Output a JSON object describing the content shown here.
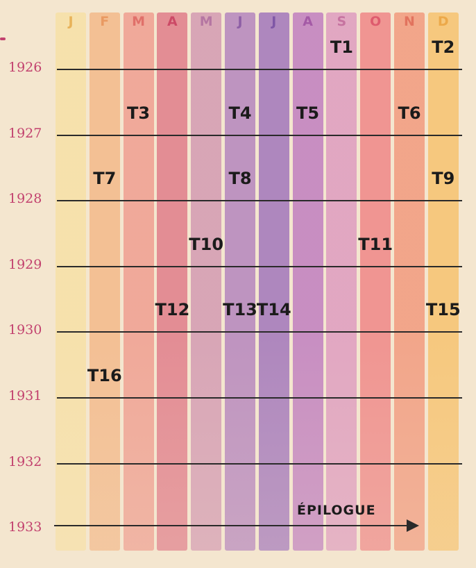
{
  "months": [
    {
      "label": "J",
      "color": "#f7e0a6",
      "text": "#e8b35a"
    },
    {
      "label": "F",
      "color": "#f3b98a",
      "text": "#e99a62"
    },
    {
      "label": "M",
      "color": "#ef9e90",
      "text": "#e0706a"
    },
    {
      "label": "A",
      "color": "#e07d8a",
      "text": "#cc4a66"
    },
    {
      "label": "M",
      "color": "#d39ab2",
      "text": "#b576a2"
    },
    {
      "label": "J",
      "color": "#b585bd",
      "text": "#8e5fa6"
    },
    {
      "label": "J",
      "color": "#a276bb",
      "text": "#7f57a6"
    },
    {
      "label": "A",
      "color": "#c07fbf",
      "text": "#a45aa6"
    },
    {
      "label": "S",
      "color": "#de9cbf",
      "text": "#c673a0"
    },
    {
      "label": "O",
      "color": "#ef8787",
      "text": "#de5b6e"
    },
    {
      "label": "N",
      "color": "#f19a7e",
      "text": "#e2735e"
    },
    {
      "label": "D",
      "color": "#f6c370",
      "text": "#eca94a"
    }
  ],
  "years": [
    "1926",
    "1927",
    "1928",
    "1929",
    "1930",
    "1931",
    "1932",
    "1933"
  ],
  "tomes": [
    {
      "label": "T1",
      "year": 1926,
      "month": 9
    },
    {
      "label": "T2",
      "year": 1926,
      "month": 12
    },
    {
      "label": "T3",
      "year": 1927,
      "month": 3
    },
    {
      "label": "T4",
      "year": 1927,
      "month": 6
    },
    {
      "label": "T5",
      "year": 1927,
      "month": 8
    },
    {
      "label": "T6",
      "year": 1927,
      "month": 11
    },
    {
      "label": "T7",
      "year": 1928,
      "month": 2
    },
    {
      "label": "T8",
      "year": 1928,
      "month": 6
    },
    {
      "label": "T9",
      "year": 1928,
      "month": 12
    },
    {
      "label": "T10",
      "year": 1929,
      "month": 5
    },
    {
      "label": "T11",
      "year": 1929,
      "month": 10
    },
    {
      "label": "T12",
      "year": 1930,
      "month": 4
    },
    {
      "label": "T13",
      "year": 1930,
      "month": 6
    },
    {
      "label": "T14",
      "year": 1930,
      "month": 7
    },
    {
      "label": "T15",
      "year": 1930,
      "month": 12
    },
    {
      "label": "T16",
      "year": 1931,
      "month": 2
    }
  ],
  "epilogue": "ÉPILOGUE",
  "line_color": "#2a2a2a",
  "year_color": "#c2416e"
}
